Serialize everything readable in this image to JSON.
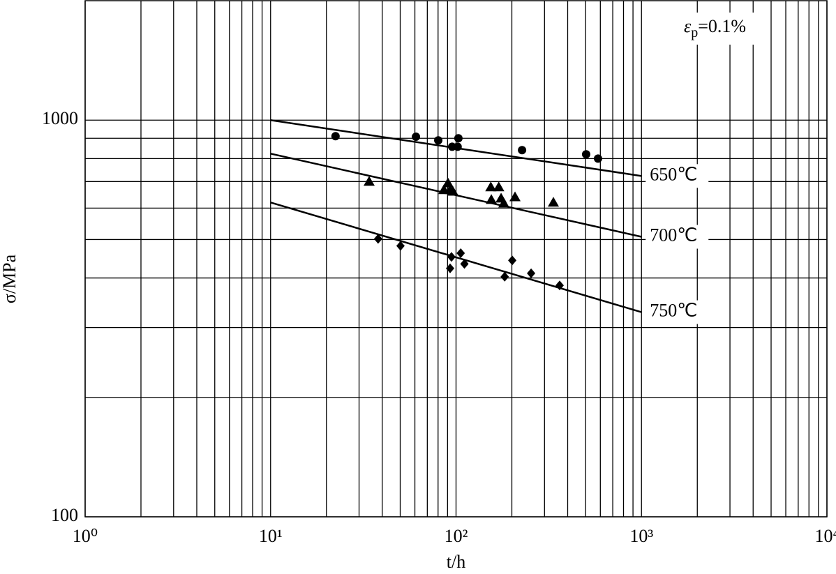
{
  "chart_data": {
    "type": "scatter",
    "x_label": "t/h",
    "y_label": "σ/MPa",
    "annotation": [
      "ε",
      "p",
      "=0.1%"
    ],
    "xscale": "log",
    "yscale": "log",
    "xlim": [
      1,
      10000
    ],
    "ylim": [
      100,
      2000
    ],
    "xticks": [
      {
        "value": 1,
        "label": "10⁰"
      },
      {
        "value": 10,
        "label": "10¹"
      },
      {
        "value": 100,
        "label": "10²"
      },
      {
        "value": 1000,
        "label": "10³"
      },
      {
        "value": 10000,
        "label": "10⁴"
      }
    ],
    "yticks": [
      100,
      1000
    ],
    "x_minor_grid": [
      2,
      3,
      4,
      5,
      6,
      7,
      8,
      9,
      20,
      30,
      40,
      50,
      60,
      70,
      80,
      90,
      200,
      300,
      400,
      500,
      600,
      700,
      800,
      900,
      2000,
      3000,
      4000,
      5000,
      6000,
      7000,
      8000,
      9000
    ],
    "y_minor_grid": [
      200,
      300,
      400,
      500,
      600,
      700,
      800,
      900
    ],
    "grid": true,
    "color": "#000000",
    "series": [
      {
        "name": "650℃",
        "marker": "circle",
        "x": [
          22.4,
          60.8,
          80.2,
          95.3,
          102,
          103,
          227,
          503,
          583
        ],
        "values": [
          911,
          908,
          889,
          857,
          857,
          900,
          840,
          820,
          800
        ],
        "fit": {
          "x": [
            10,
            1000
          ],
          "values": [
            1000,
            723
          ]
        }
      },
      {
        "name": "700℃",
        "marker": "triangle",
        "x": [
          34,
          90.5,
          86,
          92.9,
          96.2,
          154,
          170,
          155,
          175,
          208,
          181,
          335
        ],
        "values": [
          700,
          694,
          667,
          667,
          661,
          678,
          678,
          630,
          635,
          640,
          617,
          620
        ],
        "fit": {
          "x": [
            10,
            1000
          ],
          "values": [
            823,
            508
          ]
        }
      },
      {
        "name": "750℃",
        "marker": "diamond",
        "x": [
          38,
          50.2,
          94.5,
          106,
          92.9,
          111,
          201,
          183,
          254,
          362
        ],
        "values": [
          502,
          482,
          452,
          462,
          423,
          434,
          443,
          403,
          411,
          383
        ],
        "fit": {
          "x": [
            10,
            1000
          ],
          "values": [
            620,
            328
          ]
        }
      }
    ]
  }
}
